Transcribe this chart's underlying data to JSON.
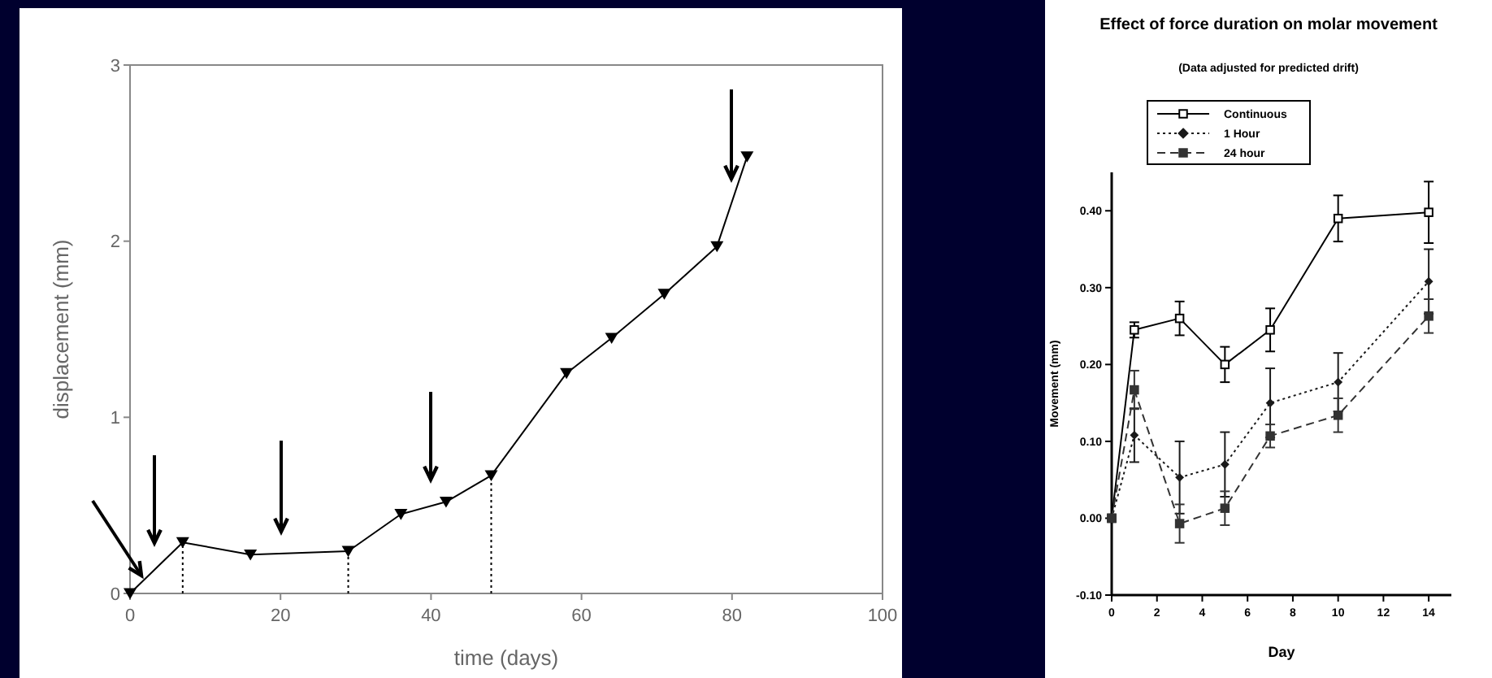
{
  "chart_data": [
    {
      "type": "line",
      "xlabel": "time (days)",
      "ylabel": "displacement (mm)",
      "xlim": [
        0,
        100
      ],
      "xticks": [
        0,
        20,
        40,
        60,
        80,
        100
      ],
      "ylim": [
        0,
        3
      ],
      "yticks": [
        0,
        1,
        2,
        3
      ],
      "grid": false,
      "legend": false,
      "marker": "triangle",
      "line_style": "solid",
      "x": [
        0,
        7,
        16,
        29,
        36,
        42,
        48,
        58,
        64,
        71,
        78,
        82
      ],
      "series": [
        {
          "color": "#000000",
          "values": [
            0,
            0.29,
            0.22,
            0.24,
            0.45,
            0.52,
            0.67,
            1.25,
            1.45,
            1.7,
            1.97,
            2.48
          ]
        },
        {
          "color": "#000000",
          "x": [
            7,
            7
          ],
          "values": [
            0,
            0.29
          ],
          "marker": "none",
          "line_style": "dotted"
        },
        {
          "color": "#000000",
          "x": [
            29,
            29
          ],
          "values": [
            0,
            0.24
          ],
          "marker": "none",
          "line_style": "dotted"
        },
        {
          "color": "#000000",
          "x": [
            48,
            48
          ],
          "values": [
            0,
            0.67
          ],
          "marker": "none",
          "line_style": "dotted"
        }
      ]
    },
    {
      "type": "line",
      "title": "Effect of force duration on molar movement",
      "subtitle": "(Data adjusted for predicted drift)",
      "xlabel": "Day",
      "ylabel": "Movement  (mm)",
      "xlim": [
        0,
        15
      ],
      "xticks": [
        0,
        2,
        4,
        6,
        8,
        10,
        12,
        14
      ],
      "ylim": [
        -0.1,
        0.45
      ],
      "yticks": [
        {
          "value": -0.1,
          "label": "-0.10"
        },
        {
          "value": 0,
          "label": "0.00"
        },
        {
          "value": 0.1,
          "label": "0.10"
        },
        {
          "value": 0.2,
          "label": "0.20"
        },
        {
          "value": 0.3,
          "label": "0.30"
        },
        {
          "value": 0.4,
          "label": "0.40"
        }
      ],
      "grid": false,
      "legend": "top left",
      "x": [
        0,
        1,
        3,
        5,
        7,
        10,
        14
      ],
      "series": [
        {
          "name": "Continuous",
          "color": "#000000",
          "marker": "square",
          "line_style": "solid",
          "values": [
            0,
            0.245,
            0.26,
            0.2,
            0.245,
            0.39,
            0.398
          ],
          "errors": [
            null,
            0.01,
            0.022,
            0.023,
            0.028,
            0.03,
            0.04
          ]
        },
        {
          "name": "1 Hour",
          "color": "#1a1a1a",
          "marker": "diamond",
          "line_style": "dotted",
          "values": [
            0,
            0.108,
            0.053,
            0.07,
            0.15,
            0.177,
            0.308
          ],
          "errors": [
            null,
            0.035,
            0.047,
            0.042,
            0.045,
            0.038,
            0.042
          ]
        },
        {
          "name": "24 hour",
          "color": "#333333",
          "marker": "square",
          "line_style": "dashed",
          "values": [
            0,
            0.167,
            -0.007,
            0.013,
            0.107,
            0.134,
            0.263
          ],
          "errors": [
            null,
            0.025,
            0.025,
            0.022,
            0.015,
            0.022,
            0.022
          ]
        }
      ]
    }
  ]
}
